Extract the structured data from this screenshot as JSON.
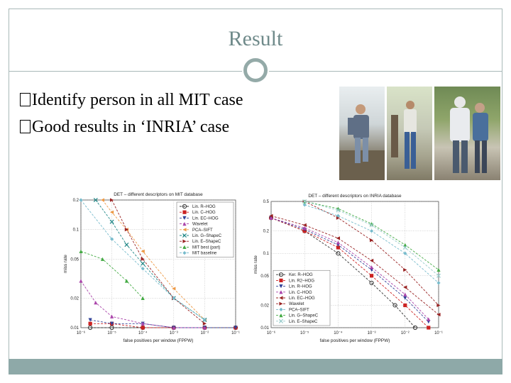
{
  "slide": {
    "title": "Result",
    "bullets": [
      {
        "marker": "�",
        "text": "Identify person in all MIT case"
      },
      {
        "marker": "�",
        "text": "Good results in ‘INRIA’ case"
      }
    ]
  },
  "colors": {
    "accent": "#6f8a8a",
    "rule": "#a9b9b8",
    "bar": "#8ea9a8"
  },
  "chart_data": [
    {
      "type": "line",
      "title": "DET – different descriptors on MIT database",
      "xlabel": "false positives per window (FPPW)",
      "ylabel": "miss rate",
      "xscale": "log",
      "yscale": "log",
      "xlim": [
        1e-06,
        0.1
      ],
      "ylim": [
        0.01,
        0.2
      ],
      "x_ticks": [
        "10⁻⁶",
        "10⁻⁵",
        "10⁻⁴",
        "10⁻³",
        "10⁻²",
        "10⁻¹"
      ],
      "y_ticks": [
        "0.2",
        "0.1",
        "0.05",
        "0.02",
        "0.01"
      ],
      "y_tick_values": [
        0.2,
        0.1,
        0.05,
        0.02,
        0.01
      ],
      "legend_position": "top-right",
      "grid": true,
      "series": [
        {
          "name": "Lin. R–HOG",
          "color": "#333333",
          "marker": "o",
          "x": [
            2e-06,
            1e-05,
            0.0001,
            0.001,
            0.01,
            0.1
          ],
          "y": [
            0.01,
            0.01,
            0.01,
            0.01,
            0.01,
            0.01
          ]
        },
        {
          "name": "Lin. C–HOG",
          "color": "#cc2222",
          "marker": "s",
          "x": [
            2e-06,
            1e-05,
            0.0001,
            0.001,
            0.01,
            0.1
          ],
          "y": [
            0.011,
            0.011,
            0.01,
            0.01,
            0.01,
            0.01
          ]
        },
        {
          "name": "Lin. EC–HOG",
          "color": "#334499",
          "marker": "v",
          "x": [
            2e-06,
            1e-05,
            0.0001,
            0.001,
            0.01,
            0.1
          ],
          "y": [
            0.012,
            0.011,
            0.011,
            0.01,
            0.01,
            0.01
          ]
        },
        {
          "name": "Wavelet",
          "color": "#aa44aa",
          "marker": "^",
          "x": [
            1e-06,
            3e-06,
            1e-05,
            0.0001,
            0.001,
            0.01
          ],
          "y": [
            0.03,
            0.018,
            0.013,
            0.011,
            0.01,
            0.01
          ]
        },
        {
          "name": "PCA–SIFT",
          "color": "#ee9944",
          "marker": "<",
          "x": [
            5e-06,
            1e-05,
            3e-05,
            0.0001,
            0.001,
            0.01
          ],
          "y": [
            0.2,
            0.15,
            0.1,
            0.06,
            0.025,
            0.012
          ]
        },
        {
          "name": "Lin. G–ShapeC",
          "color": "#228888",
          "marker": "x",
          "x": [
            3e-06,
            1e-05,
            3e-05,
            0.0001,
            0.001,
            0.01
          ],
          "y": [
            0.2,
            0.12,
            0.07,
            0.045,
            0.02,
            0.012
          ]
        },
        {
          "name": "Lin. E–ShapeC",
          "color": "#992222",
          "marker": ">",
          "x": [
            1e-05,
            3e-05,
            0.0001,
            0.001,
            0.01
          ],
          "y": [
            0.2,
            0.1,
            0.05,
            0.02,
            0.011
          ]
        },
        {
          "name": "MIT best (part)",
          "color": "#44aa44",
          "marker": "^",
          "x": [
            1e-06,
            5e-06,
            3e-05,
            0.0001
          ],
          "y": [
            0.06,
            0.05,
            0.03,
            0.02
          ]
        },
        {
          "name": "MIT baseline",
          "color": "#77bbcc",
          "marker": "d",
          "x": [
            1e-06,
            1e-05,
            0.0001,
            0.001,
            0.01
          ],
          "y": [
            0.2,
            0.08,
            0.04,
            0.02,
            0.012
          ]
        }
      ]
    },
    {
      "type": "line",
      "title": "DET – different descriptors on INRIA database",
      "xlabel": "false positives per window (FPPW)",
      "ylabel": "miss rate",
      "xscale": "log",
      "yscale": "log",
      "xlim": [
        1e-06,
        0.1
      ],
      "ylim": [
        0.01,
        0.5
      ],
      "x_ticks": [
        "10⁻⁶",
        "10⁻⁵",
        "10⁻⁴",
        "10⁻³",
        "10⁻²",
        "10⁻¹"
      ],
      "y_ticks": [
        "0.5",
        "0.2",
        "0.1",
        "0.05",
        "0.02",
        "0.01"
      ],
      "y_tick_values": [
        0.5,
        0.2,
        0.1,
        0.05,
        0.02,
        0.01
      ],
      "legend_position": "bottom-left",
      "grid": true,
      "series": [
        {
          "name": "Ker. R–HOG",
          "color": "#333333",
          "marker": "o",
          "x": [
            1e-06,
            1e-05,
            0.0001,
            0.001,
            0.005,
            0.02
          ],
          "y": [
            0.3,
            0.2,
            0.1,
            0.04,
            0.02,
            0.01
          ]
        },
        {
          "name": "Lin. R2–HOG",
          "color": "#cc2222",
          "marker": "s",
          "x": [
            1e-06,
            1e-05,
            0.0001,
            0.001,
            0.01,
            0.05
          ],
          "y": [
            0.3,
            0.2,
            0.12,
            0.05,
            0.02,
            0.01
          ]
        },
        {
          "name": "Lin. R–HOG",
          "color": "#334499",
          "marker": "v",
          "x": [
            1e-06,
            1e-05,
            0.0001,
            0.001,
            0.01,
            0.05
          ],
          "y": [
            0.3,
            0.21,
            0.13,
            0.06,
            0.025,
            0.012
          ]
        },
        {
          "name": "Lin. C–HOG",
          "color": "#aa44aa",
          "marker": "^",
          "x": [
            1e-06,
            1e-05,
            0.0001,
            0.001,
            0.01,
            0.05
          ],
          "y": [
            0.3,
            0.22,
            0.14,
            0.065,
            0.028,
            0.013
          ]
        },
        {
          "name": "Lin. EC–HOG",
          "color": "#992222",
          "marker": "<",
          "x": [
            1e-06,
            1e-05,
            0.0001,
            0.001,
            0.01,
            0.1
          ],
          "y": [
            0.32,
            0.24,
            0.16,
            0.08,
            0.035,
            0.015
          ]
        },
        {
          "name": "Wavelet",
          "color": "#992222",
          "marker": ">",
          "x": [
            1e-05,
            0.0001,
            0.001,
            0.01,
            0.1
          ],
          "y": [
            0.5,
            0.3,
            0.15,
            0.06,
            0.02
          ]
        },
        {
          "name": "PCA–SIFT",
          "color": "#77bbcc",
          "marker": "d",
          "x": [
            1e-05,
            0.0001,
            0.001,
            0.01,
            0.1
          ],
          "y": [
            0.45,
            0.32,
            0.2,
            0.1,
            0.04
          ]
        },
        {
          "name": "Lin. G–ShapeC",
          "color": "#44aa44",
          "marker": "^",
          "x": [
            1e-05,
            0.0001,
            0.001,
            0.01,
            0.1
          ],
          "y": [
            0.5,
            0.4,
            0.25,
            0.13,
            0.06
          ]
        },
        {
          "name": "Lin. E–ShapeC",
          "color": "#99cccc",
          "marker": "x",
          "x": [
            1e-05,
            0.0001,
            0.001,
            0.01,
            0.1
          ],
          "y": [
            0.5,
            0.38,
            0.24,
            0.12,
            0.05
          ]
        }
      ]
    }
  ]
}
